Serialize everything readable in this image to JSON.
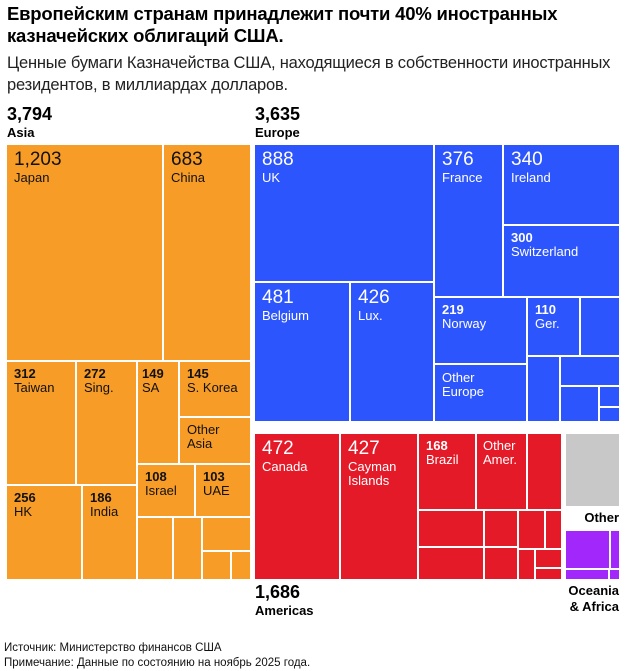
{
  "header": {
    "title": "Европейским странам принадлежит почти 40% иностранных казначейских облигаций США.",
    "subtitle": "Ценные бумаги Казначейства США, находящиеся в собственности иностранных резидентов, в миллиардах долларов."
  },
  "groups": {
    "asia": {
      "value": "3,794",
      "name": "Asia"
    },
    "europe": {
      "value": "3,635",
      "name": "Europe"
    },
    "americas": {
      "value": "1,686",
      "name": "Americas"
    },
    "other": {
      "name": "Other"
    },
    "oceania": {
      "name": "Oceania\n& Africa"
    }
  },
  "colors": {
    "asia": "#f89c28",
    "europe": "#2d55fd",
    "americas": "#e51a28",
    "other": "#c8c8c8",
    "oceania_africa": "#a227fb"
  },
  "chart_data": {
    "type": "treemap",
    "title": "Европейским странам принадлежит почти 40% иностранных казначейских облигаций США.",
    "unit": "billions of US dollars",
    "groups": [
      {
        "name": "Asia",
        "total": 3794,
        "items": [
          {
            "name": "Japan",
            "value": 1203,
            "value_label": "1,203"
          },
          {
            "name": "China",
            "value": 683,
            "value_label": "683"
          },
          {
            "name": "Taiwan",
            "value": 312,
            "value_label": "312"
          },
          {
            "name": "Sing.",
            "value": 272,
            "value_label": "272"
          },
          {
            "name": "HK",
            "value": 256,
            "value_label": "256"
          },
          {
            "name": "India",
            "value": 186,
            "value_label": "186"
          },
          {
            "name": "SA",
            "value": 149,
            "value_label": "149"
          },
          {
            "name": "S. Korea",
            "value": 145,
            "value_label": "145"
          },
          {
            "name": "Other\nAsia",
            "value": null,
            "value_label": ""
          },
          {
            "name": "Israel",
            "value": 108,
            "value_label": "108"
          },
          {
            "name": "UAE",
            "value": 103,
            "value_label": "103"
          }
        ]
      },
      {
        "name": "Europe",
        "total": 3635,
        "items": [
          {
            "name": "UK",
            "value": 888,
            "value_label": "888"
          },
          {
            "name": "France",
            "value": 376,
            "value_label": "376"
          },
          {
            "name": "Ireland",
            "value": 340,
            "value_label": "340"
          },
          {
            "name": "Switzerland",
            "value": 300,
            "value_label": "300"
          },
          {
            "name": "Belgium",
            "value": 481,
            "value_label": "481"
          },
          {
            "name": "Lux.",
            "value": 426,
            "value_label": "426"
          },
          {
            "name": "Norway",
            "value": 219,
            "value_label": "219"
          },
          {
            "name": "Ger.",
            "value": 110,
            "value_label": "110"
          },
          {
            "name": "Other\nEurope",
            "value": null,
            "value_label": ""
          }
        ]
      },
      {
        "name": "Americas",
        "total": 1686,
        "items": [
          {
            "name": "Canada",
            "value": 472,
            "value_label": "472"
          },
          {
            "name": "Cayman\nIslands",
            "value": 427,
            "value_label": "427"
          },
          {
            "name": "Brazil",
            "value": 168,
            "value_label": "168"
          },
          {
            "name": "Other\nAmer.",
            "value": null,
            "value_label": ""
          }
        ]
      },
      {
        "name": "Other",
        "total": null,
        "items": []
      },
      {
        "name": "Oceania & Africa",
        "total": null,
        "items": []
      }
    ]
  },
  "footer": {
    "source": "Источник: Министерство финансов США",
    "note": "Примечание: Данные по состоянию на ноябрь 2025 года."
  }
}
